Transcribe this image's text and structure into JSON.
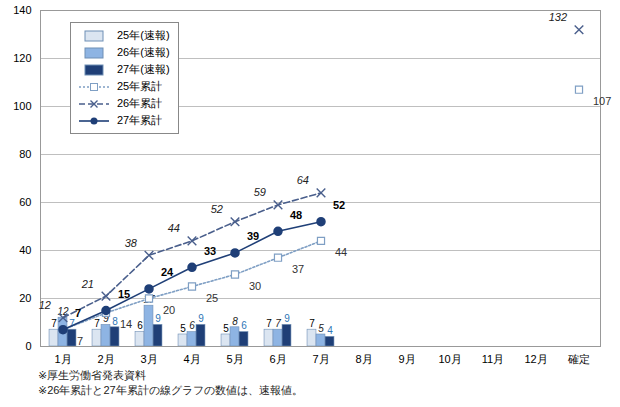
{
  "chart_data": {
    "type": "bar",
    "categories": [
      "1月",
      "2月",
      "3月",
      "4月",
      "5月",
      "6月",
      "7月",
      "8月",
      "9月",
      "10月",
      "11月",
      "12月",
      "確定"
    ],
    "series": [
      {
        "name": "25年(速報)",
        "type": "bar",
        "color": "#dbe5f1",
        "values": [
          7,
          7,
          6,
          5,
          5,
          7,
          7,
          null,
          null,
          null,
          null,
          null,
          null
        ]
      },
      {
        "name": "26年(速報)",
        "type": "bar",
        "color": "#8eb4e3",
        "values": [
          12,
          9,
          17,
          6,
          8,
          7,
          5,
          null,
          null,
          null,
          null,
          null,
          null
        ]
      },
      {
        "name": "27年(速報)",
        "type": "bar",
        "color": "#1f3f77",
        "values": [
          7,
          8,
          9,
          9,
          6,
          9,
          4,
          null,
          null,
          null,
          null,
          null,
          null
        ]
      },
      {
        "name": "25年累計",
        "type": "line",
        "color": "#7f9fc4",
        "marker": "square",
        "line_style": "dotted",
        "values": [
          7,
          14,
          20,
          25,
          30,
          37,
          44,
          null,
          null,
          null,
          null,
          null,
          107
        ]
      },
      {
        "name": "26年累計",
        "type": "line",
        "color": "#4a5f8c",
        "marker": "x",
        "line_style": "dashed",
        "values": [
          12,
          21,
          38,
          44,
          52,
          59,
          64,
          null,
          null,
          null,
          null,
          null,
          132
        ]
      },
      {
        "name": "27年累計",
        "type": "line",
        "color": "#1f3f77",
        "marker": "circle",
        "line_style": "solid",
        "values": [
          7,
          15,
          24,
          33,
          39,
          48,
          52,
          null,
          null,
          null,
          null,
          null,
          null
        ]
      }
    ],
    "ylim": [
      0,
      140
    ],
    "yticks": [
      0,
      20,
      40,
      60,
      80,
      100,
      120,
      140
    ],
    "grid": true,
    "data_labels": true,
    "legend": "upper left",
    "notes": [
      "※厚生労働省発表資料",
      "※26年累計と27年累計の線グラフの数値は、速報値。"
    ]
  }
}
